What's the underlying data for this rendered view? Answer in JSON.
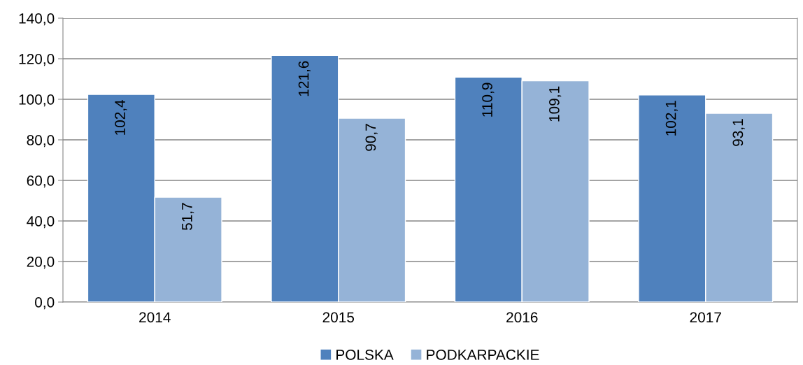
{
  "chart_data": {
    "type": "bar",
    "categories": [
      "2014",
      "2015",
      "2016",
      "2017"
    ],
    "series": [
      {
        "name": "POLSKA",
        "color": "#4f81bd",
        "values": [
          102.4,
          121.6,
          110.9,
          102.1
        ],
        "value_labels": [
          "102,4",
          "121,6",
          "110,9",
          "102,1"
        ]
      },
      {
        "name": "PODKARPACKIE",
        "color": "#95b3d7",
        "values": [
          51.7,
          90.7,
          109.1,
          93.1
        ],
        "value_labels": [
          "51,7",
          "90,7",
          "109,1",
          "93,1"
        ]
      }
    ],
    "ylim": [
      0,
      140
    ],
    "yticks": [
      {
        "value": 0,
        "label": "0,0"
      },
      {
        "value": 20,
        "label": "20,0"
      },
      {
        "value": 40,
        "label": "40,0"
      },
      {
        "value": 60,
        "label": "60,0"
      },
      {
        "value": 80,
        "label": "80,0"
      },
      {
        "value": 100,
        "label": "100,0"
      },
      {
        "value": 120,
        "label": "120,0"
      },
      {
        "value": 140,
        "label": "140,0"
      }
    ],
    "grid": "y",
    "legend": "bottom"
  }
}
